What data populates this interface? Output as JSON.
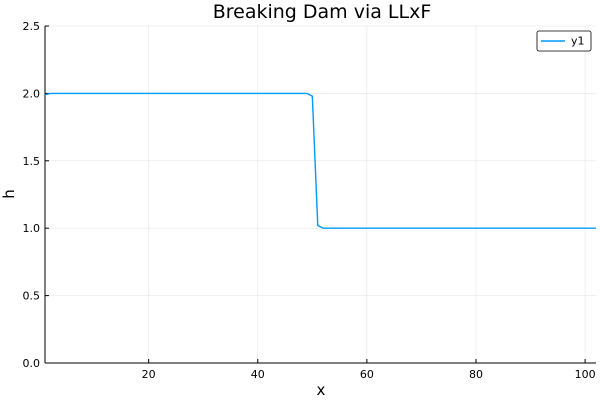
{
  "chart_data": {
    "type": "line",
    "title": "Breaking Dam via LLxF",
    "xlabel": "x",
    "ylabel": "h",
    "xlim": [
      1,
      102
    ],
    "ylim": [
      0,
      2.5
    ],
    "xticks": [
      20,
      40,
      60,
      80,
      100
    ],
    "yticks": [
      0.0,
      0.5,
      1.0,
      1.5,
      2.0,
      2.5
    ],
    "xtick_labels": [
      "20",
      "40",
      "60",
      "80",
      "100"
    ],
    "ytick_labels": [
      "0.0",
      "0.5",
      "1.0",
      "1.5",
      "2.0",
      "2.5"
    ],
    "grid": true,
    "legend": {
      "placement": "top-right",
      "entries": [
        "y1"
      ]
    },
    "series": [
      {
        "name": "y1",
        "color": "#009AFA",
        "x": [
          1,
          2,
          49,
          50,
          51,
          52,
          102
        ],
        "y": [
          1.99,
          2.0,
          2.0,
          1.98,
          1.02,
          1.0,
          1.0
        ]
      }
    ]
  }
}
